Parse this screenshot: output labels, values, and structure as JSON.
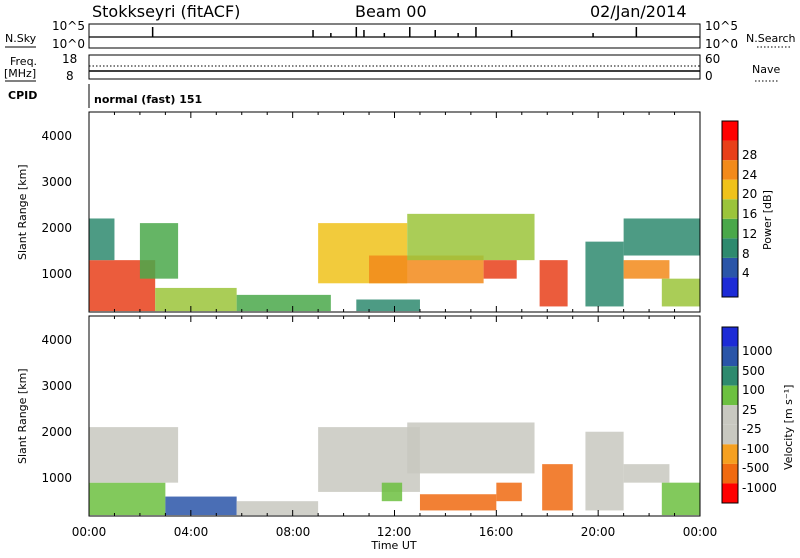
{
  "header": {
    "station": "Stokkseyri (fitACF)",
    "beam": "Beam 00",
    "date": "02/Jan/2014"
  },
  "top_panels": {
    "nsky_label": "N.Sky",
    "nsky_top": "10^5",
    "nsky_bottom": "10^0",
    "nsearch_label": "N.Search",
    "freq_label": "Freq.",
    "freq_unit": "[MHz]",
    "freq_top": "18",
    "freq_bottom": "8",
    "nave_top": "60",
    "nave_bottom": "0",
    "nave_label": "Nave",
    "cpid_label": "CPID",
    "cpid_value": "normal (fast) 151"
  },
  "x_axis": {
    "label": "Time UT",
    "ticks": [
      "00:00",
      "04:00",
      "08:00",
      "12:00",
      "16:00",
      "20:00",
      "00:00"
    ]
  },
  "power_panel": {
    "ylabel": "Slant Range [km]",
    "yticks": [
      "1000",
      "2000",
      "3000",
      "4000"
    ],
    "colorbar_label": "Power [dB]",
    "colorbar_ticks": [
      "4",
      "8",
      "12",
      "16",
      "20",
      "24",
      "28"
    ],
    "colors": [
      "#1d2bd6",
      "#2a55a8",
      "#2e8a6e",
      "#4aa84a",
      "#9bc43a",
      "#f0c21a",
      "#f28a1a",
      "#e8401a",
      "#ff0000"
    ]
  },
  "velocity_panel": {
    "ylabel": "Slant Range [km]",
    "yticks": [
      "1000",
      "2000",
      "3000",
      "4000"
    ],
    "colorbar_label": "Velocity [m s⁻¹]",
    "colorbar_ticks": [
      "1000",
      "500",
      "100",
      "25",
      "-25",
      "-100",
      "-500",
      "-1000"
    ],
    "colors": [
      "#1d2bd6",
      "#2a55a8",
      "#2e8a6e",
      "#6cc040",
      "#c8c8c0",
      "#c8c8c0",
      "#f5a020",
      "#f06a10",
      "#ff0000"
    ]
  },
  "chart_data": {
    "type": "heatmap",
    "x_range_hours": [
      0,
      24
    ],
    "y_range_km": [
      180,
      4500
    ],
    "power_regions": [
      {
        "t0": 0.0,
        "t1": 2.6,
        "r0": 200,
        "r1": 1300,
        "power": 28
      },
      {
        "t0": 0.0,
        "t1": 1.0,
        "r0": 1300,
        "r1": 2200,
        "power": 8
      },
      {
        "t0": 2.0,
        "t1": 3.5,
        "r0": 900,
        "r1": 2100,
        "power": 12
      },
      {
        "t0": 2.6,
        "t1": 5.8,
        "r0": 200,
        "r1": 700,
        "power": 16
      },
      {
        "t0": 5.8,
        "t1": 9.5,
        "r0": 200,
        "r1": 550,
        "power": 12
      },
      {
        "t0": 9.0,
        "t1": 12.5,
        "r0": 800,
        "r1": 2100,
        "power": 20
      },
      {
        "t0": 10.5,
        "t1": 13.0,
        "r0": 200,
        "r1": 450,
        "power": 8
      },
      {
        "t0": 11.0,
        "t1": 15.5,
        "r0": 800,
        "r1": 1400,
        "power": 24
      },
      {
        "t0": 12.5,
        "t1": 17.5,
        "r0": 1300,
        "r1": 2300,
        "power": 16
      },
      {
        "t0": 15.5,
        "t1": 16.8,
        "r0": 900,
        "r1": 1300,
        "power": 28
      },
      {
        "t0": 17.7,
        "t1": 18.8,
        "r0": 300,
        "r1": 1300,
        "power": 28
      },
      {
        "t0": 19.5,
        "t1": 21.0,
        "r0": 300,
        "r1": 1700,
        "power": 8
      },
      {
        "t0": 21.0,
        "t1": 22.8,
        "r0": 900,
        "r1": 1300,
        "power": 24
      },
      {
        "t0": 21.0,
        "t1": 24.0,
        "r0": 1400,
        "r1": 2200,
        "power": 8
      },
      {
        "t0": 22.5,
        "t1": 24.0,
        "r0": 300,
        "r1": 900,
        "power": 16
      }
    ],
    "velocity_regions": [
      {
        "t0": 0.0,
        "t1": 3.0,
        "r0": 200,
        "r1": 900,
        "velocity": 100
      },
      {
        "t0": 0.0,
        "t1": 3.5,
        "r0": 900,
        "r1": 2100,
        "velocity": 0
      },
      {
        "t0": 3.0,
        "t1": 5.8,
        "r0": 200,
        "r1": 600,
        "velocity": 500
      },
      {
        "t0": 5.8,
        "t1": 9.0,
        "r0": 200,
        "r1": 500,
        "velocity": 0
      },
      {
        "t0": 9.0,
        "t1": 13.0,
        "r0": 700,
        "r1": 2100,
        "velocity": 0
      },
      {
        "t0": 11.5,
        "t1": 12.3,
        "r0": 500,
        "r1": 900,
        "velocity": 100
      },
      {
        "t0": 12.5,
        "t1": 17.5,
        "r0": 1100,
        "r1": 2200,
        "velocity": 0
      },
      {
        "t0": 13.0,
        "t1": 16.0,
        "r0": 300,
        "r1": 650,
        "velocity": -500
      },
      {
        "t0": 16.0,
        "t1": 17.0,
        "r0": 500,
        "r1": 900,
        "velocity": -500
      },
      {
        "t0": 17.8,
        "t1": 19.0,
        "r0": 300,
        "r1": 1300,
        "velocity": -500
      },
      {
        "t0": 19.5,
        "t1": 21.0,
        "r0": 300,
        "r1": 2000,
        "velocity": 0
      },
      {
        "t0": 21.0,
        "t1": 22.8,
        "r0": 900,
        "r1": 1300,
        "velocity": 0
      },
      {
        "t0": 22.5,
        "t1": 24.0,
        "r0": 200,
        "r1": 900,
        "velocity": 100
      }
    ],
    "nsky_spike_hours": [
      2.5,
      8.8,
      9.5,
      10.5,
      10.8,
      11.6,
      12.6,
      13.6,
      14.5,
      15.2,
      16.6,
      19.8,
      21.5
    ]
  }
}
